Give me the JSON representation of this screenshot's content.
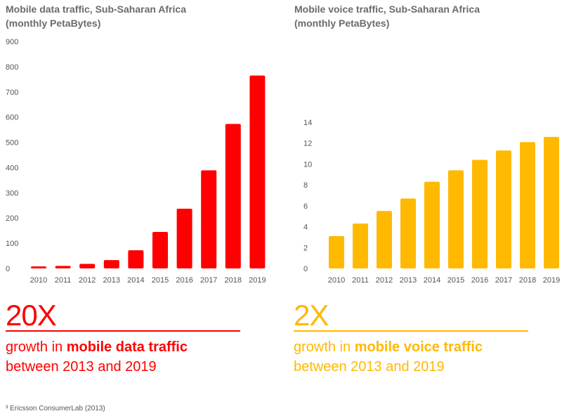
{
  "colors": {
    "data_red": "#ff0000",
    "voice_gold": "#ffb900",
    "text_gray": "#6b6b6b"
  },
  "left": {
    "title_line1": "Mobile data traffic, Sub-Saharan Africa",
    "title_line2": "(monthly PetaBytes)",
    "multiplier": "20X",
    "growth_prefix": "growth in ",
    "growth_bold": "mobile data traffic",
    "growth_line2": "between 2013 and 2019"
  },
  "right": {
    "title_line1": "Mobile voice traffic, Sub-Saharan Africa",
    "title_line2": "(monthly PetaBytes)",
    "multiplier": "2X",
    "growth_prefix": "growth in ",
    "growth_bold": "mobile voice traffic",
    "growth_line2": "between 2013 and 2019"
  },
  "footnote": "³ Ericsson ConsumerLab (2013)",
  "chart_data": [
    {
      "type": "bar",
      "title": "Mobile data traffic, Sub-Saharan Africa (monthly PetaBytes)",
      "categories": [
        "2010",
        "2011",
        "2012",
        "2013",
        "2014",
        "2015",
        "2016",
        "2017",
        "2018",
        "2019"
      ],
      "values": [
        8,
        10,
        18,
        33,
        72,
        145,
        237,
        389,
        573,
        765
      ],
      "ylim": [
        0,
        900
      ],
      "yticks": [
        0,
        100,
        200,
        300,
        400,
        500,
        600,
        700,
        800,
        900
      ],
      "color": "#ff0000",
      "grid": false
    },
    {
      "type": "bar",
      "title": "Mobile voice traffic, Sub-Saharan Africa (monthly PetaBytes)",
      "categories": [
        "2010",
        "2011",
        "2012",
        "2013",
        "2014",
        "2015",
        "2016",
        "2017",
        "2018",
        "2019"
      ],
      "values": [
        3.1,
        4.3,
        5.5,
        6.7,
        8.3,
        9.4,
        10.4,
        11.3,
        12.1,
        12.6
      ],
      "ylim": [
        0,
        14
      ],
      "yticks": [
        0,
        2,
        4,
        6,
        8,
        10,
        12,
        14
      ],
      "color": "#ffb900",
      "grid": false
    }
  ]
}
